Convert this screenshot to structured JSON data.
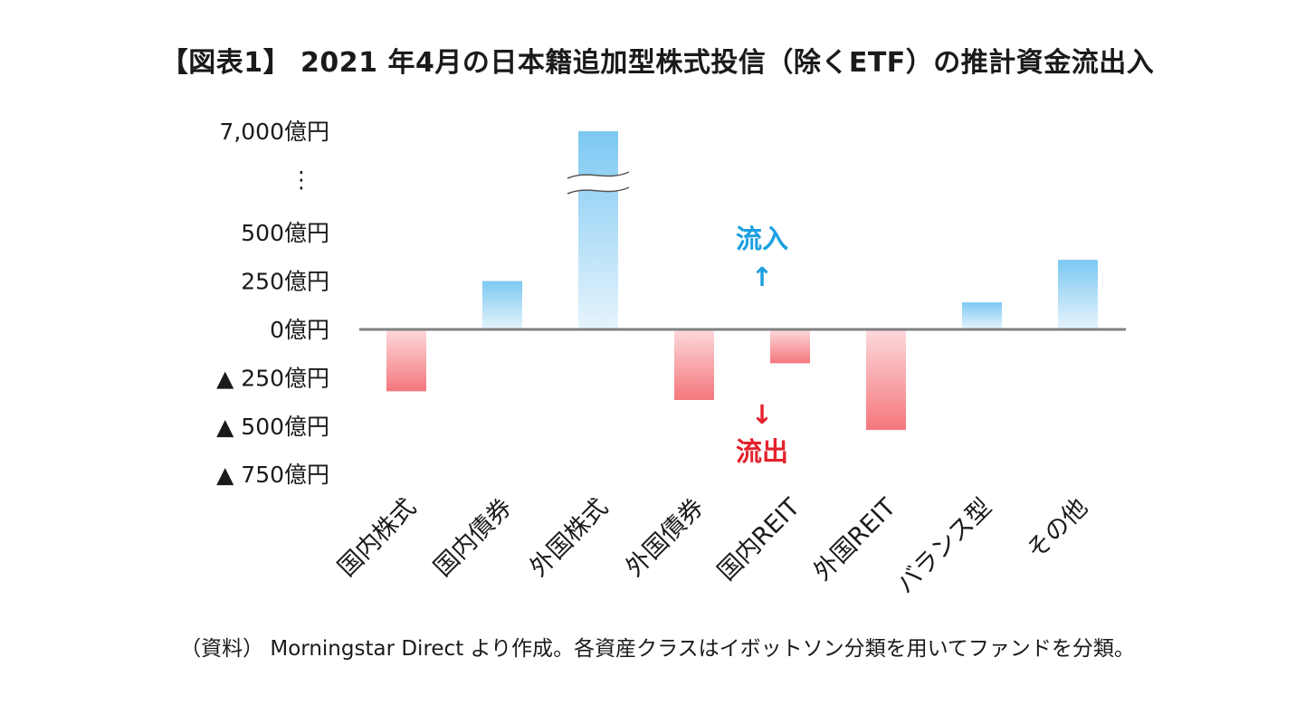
{
  "title": "【図表1】 2021 年4月の日本籍追加型株式投信（除くETF）の推計資金流出入",
  "source_note": "（資料） Morningstar Direct より作成。各資産クラスはイボットソン分類を用いてファンドを分類。",
  "annotations": {
    "inflow_label": "流入",
    "inflow_arrow": "↑",
    "outflow_label": "流出",
    "outflow_arrow": "↓",
    "axis_break_mark": "⋮"
  },
  "colors": {
    "positive_top": "#7cc8f2",
    "positive_bottom": "#e6f4fc",
    "negative_top": "#fcd9dc",
    "negative_bottom": "#f4777c",
    "axis": "#808080",
    "inflow_text": "#1a9fe0",
    "outflow_text": "#e3222c"
  },
  "chart_data": {
    "type": "bar",
    "title": "【図表1】 2021 年4月の日本籍追加型株式投信（除くETF）の推計資金流出入",
    "unit": "億円",
    "categories": [
      "国内株式",
      "国内債券",
      "外国株式",
      "外国債券",
      "国内REIT",
      "外国REIT",
      "バランス型",
      "その他"
    ],
    "values": [
      -320,
      250,
      7000,
      -365,
      -175,
      -520,
      140,
      360
    ],
    "axis_break": {
      "between": [
        500,
        7000
      ]
    },
    "y_ticks": [
      {
        "value": 7000,
        "label": "7,000億円"
      },
      {
        "value": 500,
        "label": "500億円"
      },
      {
        "value": 250,
        "label": "250億円"
      },
      {
        "value": 0,
        "label": "0億円"
      },
      {
        "value": -250,
        "label": "▲ 250億円"
      },
      {
        "value": -500,
        "label": "▲ 500億円"
      },
      {
        "value": -750,
        "label": "▲ 750億円"
      }
    ],
    "ylim": [
      -750,
      7000
    ],
    "grid": false,
    "legend": "none"
  }
}
